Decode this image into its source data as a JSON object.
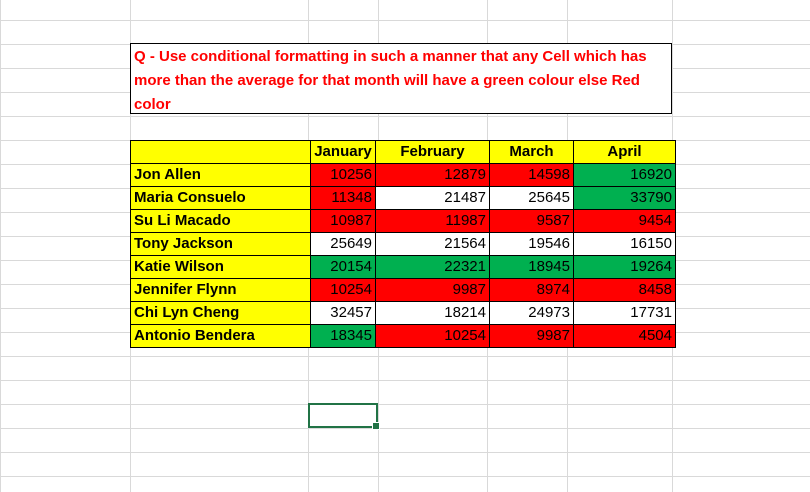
{
  "question": {
    "text": "Q - Use conditional formatting in such a manner that any Cell which has more than the average for that month will have a green colour else Red color"
  },
  "table": {
    "headers": [
      "",
      "January",
      "February",
      "March",
      "April"
    ],
    "rows": [
      {
        "name": "Jon Allen",
        "values": [
          "10256",
          "12879",
          "14598",
          "16920"
        ],
        "colors": [
          "red",
          "red",
          "red",
          "green"
        ]
      },
      {
        "name": "Maria Consuelo",
        "values": [
          "11348",
          "21487",
          "25645",
          "33790"
        ],
        "colors": [
          "red",
          "white",
          "white",
          "green"
        ]
      },
      {
        "name": "Su Li Macado",
        "values": [
          "10987",
          "11987",
          "9587",
          "9454"
        ],
        "colors": [
          "red",
          "red",
          "red",
          "red"
        ]
      },
      {
        "name": "Tony Jackson",
        "values": [
          "25649",
          "21564",
          "19546",
          "16150"
        ],
        "colors": [
          "white",
          "white",
          "white",
          "white"
        ]
      },
      {
        "name": "Katie Wilson",
        "values": [
          "20154",
          "22321",
          "18945",
          "19264"
        ],
        "colors": [
          "green",
          "green",
          "green",
          "green"
        ]
      },
      {
        "name": "Jennifer Flynn",
        "values": [
          "10254",
          "9987",
          "8974",
          "8458"
        ],
        "colors": [
          "red",
          "red",
          "red",
          "red"
        ]
      },
      {
        "name": "Chi Lyn Cheng",
        "values": [
          "32457",
          "18214",
          "24973",
          "17731"
        ],
        "colors": [
          "white",
          "white",
          "white",
          "white"
        ]
      },
      {
        "name": "Antonio Bendera",
        "values": [
          "18345",
          "10254",
          "9987",
          "4504"
        ],
        "colors": [
          "green",
          "red",
          "red",
          "red"
        ]
      }
    ]
  },
  "colors": {
    "header_fill": "#ffff00",
    "red_fill": "#ff0000",
    "green_fill": "#00b050",
    "question_text": "#ff0000",
    "selection_border": "#217346"
  }
}
